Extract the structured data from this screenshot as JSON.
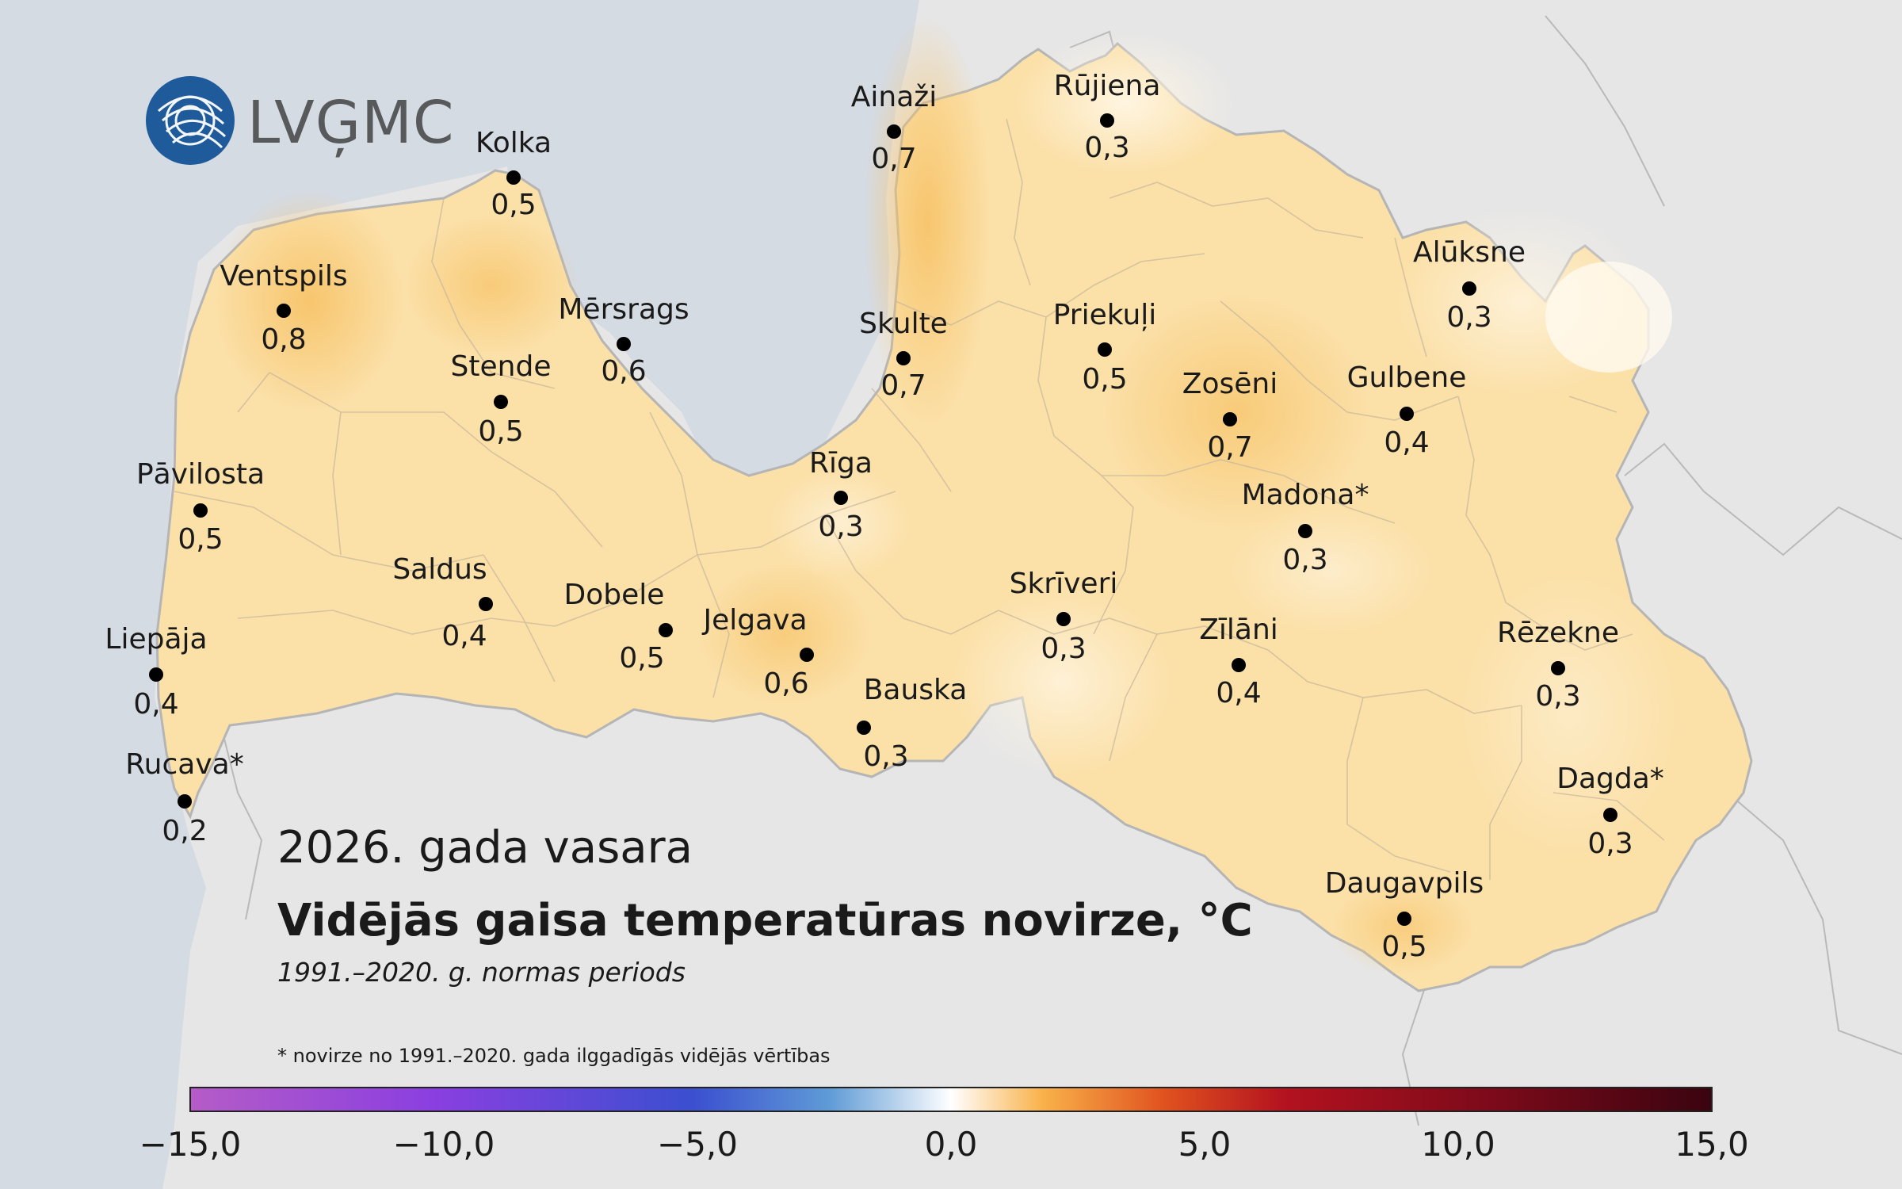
{
  "logo": {
    "text": "LVĢMC"
  },
  "title": {
    "season": "2026. gada vasara",
    "main": "Vidējās gaisa temperatūras novirze, °C",
    "period": "1991.–2020. g. normas periods"
  },
  "footnote": "* novirze no 1991.–2020. gada ilggadīgās vidējās vērtības",
  "colorbar": {
    "ticks": [
      "−15,0",
      "−10,0",
      "−5,0",
      "0,0",
      "5,0",
      "10,0",
      "15,0"
    ],
    "stops": [
      "#b55cc7",
      "#8a3fe0",
      "#3b4fd0",
      "#5f9bd6",
      "#ffffff",
      "#f9b24a",
      "#e0521f",
      "#b3121f",
      "#7a0a1a",
      "#3a0410"
    ]
  },
  "colors": {
    "sea": "#d5dbe3",
    "neighbors": "#e6e6e6",
    "land_base": "#fbe0a8",
    "warm": "#f7c66f",
    "light": "#fdeed0",
    "border": "#bfbfbf"
  },
  "stations": [
    {
      "name": "Kolka",
      "value": "0,5"
    },
    {
      "name": "Ainaži",
      "value": "0,7"
    },
    {
      "name": "Rūjiena",
      "value": "0,3"
    },
    {
      "name": "Ventspils",
      "value": "0,8"
    },
    {
      "name": "Mērsrags",
      "value": "0,6"
    },
    {
      "name": "Skulte",
      "value": "0,7"
    },
    {
      "name": "Priekuļi",
      "value": "0,5"
    },
    {
      "name": "Alūksne",
      "value": "0,3"
    },
    {
      "name": "Stende",
      "value": "0,5"
    },
    {
      "name": "Zosēni",
      "value": "0,7"
    },
    {
      "name": "Gulbene",
      "value": "0,4"
    },
    {
      "name": "Pāvilosta",
      "value": "0,5"
    },
    {
      "name": "Rīga",
      "value": "0,3"
    },
    {
      "name": "Madona*",
      "value": "0,3"
    },
    {
      "name": "Saldus",
      "value": "0,4"
    },
    {
      "name": "Dobele",
      "value": "0,5"
    },
    {
      "name": "Jelgava",
      "value": "0,6"
    },
    {
      "name": "Skrīveri",
      "value": "0,3"
    },
    {
      "name": "Zīlāni",
      "value": "0,4"
    },
    {
      "name": "Rēzekne",
      "value": "0,3"
    },
    {
      "name": "Liepāja",
      "value": "0,4"
    },
    {
      "name": "Bauska",
      "value": "0,3"
    },
    {
      "name": "Rucava*",
      "value": "0,2"
    },
    {
      "name": "Dagda*",
      "value": "0,3"
    },
    {
      "name": "Daugavpils",
      "value": "0,5"
    }
  ]
}
